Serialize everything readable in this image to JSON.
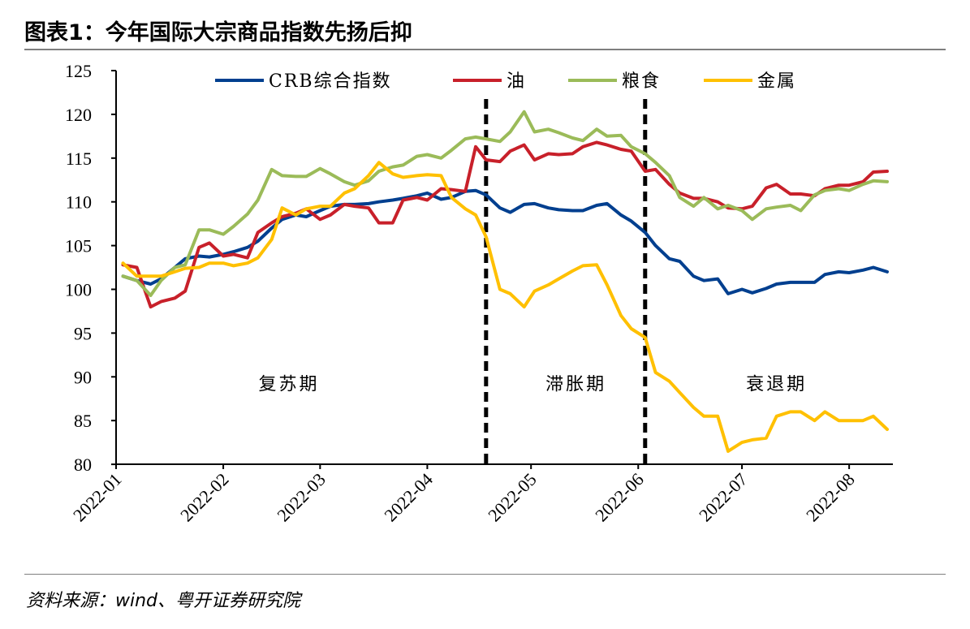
{
  "title": "图表1：今年国际大宗商品指数先扬后抑",
  "source": "资料来源：wind、粤开证券研究院",
  "chart_data": {
    "type": "line",
    "title": "",
    "xlabel": "",
    "ylabel": "",
    "ylim": [
      80,
      125
    ],
    "yticks": [
      80,
      85,
      90,
      95,
      100,
      105,
      110,
      115,
      120,
      125
    ],
    "xticks": [
      "2022-01",
      "2022-02",
      "2022-03",
      "2022-04",
      "2022-05",
      "2022-06",
      "2022-07",
      "2022-08"
    ],
    "xlim": [
      "2022-01-01",
      "2022-08-13"
    ],
    "grid": false,
    "legend_position": "top",
    "phase_dividers": [
      "2022-04-18",
      "2022-06-03"
    ],
    "phases": [
      {
        "label": "复苏期",
        "date": "2022-02-20",
        "value": 88.5
      },
      {
        "label": "滞胀期",
        "date": "2022-05-14",
        "value": 88.5
      },
      {
        "label": "衰退期",
        "date": "2022-07-11",
        "value": 88.5
      }
    ],
    "x": [
      "2022-01-03",
      "2022-01-07",
      "2022-01-11",
      "2022-01-14",
      "2022-01-18",
      "2022-01-21",
      "2022-01-25",
      "2022-01-28",
      "2022-02-01",
      "2022-02-04",
      "2022-02-08",
      "2022-02-11",
      "2022-02-15",
      "2022-02-18",
      "2022-02-22",
      "2022-02-25",
      "2022-03-01",
      "2022-03-04",
      "2022-03-08",
      "2022-03-11",
      "2022-03-15",
      "2022-03-18",
      "2022-03-22",
      "2022-03-25",
      "2022-03-29",
      "2022-04-01",
      "2022-04-05",
      "2022-04-08",
      "2022-04-12",
      "2022-04-15",
      "2022-04-18",
      "2022-04-22",
      "2022-04-25",
      "2022-04-29",
      "2022-05-02",
      "2022-05-06",
      "2022-05-09",
      "2022-05-13",
      "2022-05-16",
      "2022-05-20",
      "2022-05-23",
      "2022-05-27",
      "2022-05-30",
      "2022-06-03",
      "2022-06-06",
      "2022-06-10",
      "2022-06-13",
      "2022-06-17",
      "2022-06-20",
      "2022-06-24",
      "2022-06-27",
      "2022-07-01",
      "2022-07-04",
      "2022-07-08",
      "2022-07-11",
      "2022-07-15",
      "2022-07-18",
      "2022-07-22",
      "2022-07-25",
      "2022-07-29",
      "2022-08-01",
      "2022-08-05",
      "2022-08-08",
      "2022-08-12"
    ],
    "series": [
      {
        "name": "CRB综合指数",
        "color": "#003f8f",
        "values": [
          101.5,
          101,
          100.6,
          101.2,
          102.5,
          103.5,
          103.8,
          103.7,
          104,
          104.3,
          104.8,
          105.5,
          107,
          108,
          108.5,
          108.3,
          109,
          109.5,
          109.7,
          109.7,
          109.8,
          110,
          110.2,
          110.4,
          110.7,
          111,
          110.3,
          110.5,
          111.2,
          111.3,
          110.8,
          109.3,
          108.8,
          109.7,
          109.8,
          109.3,
          109.1,
          109,
          109,
          109.6,
          109.8,
          108.5,
          107.8,
          106.5,
          105,
          103.5,
          103.2,
          101.5,
          101,
          101.2,
          99.5,
          100,
          99.6,
          100.1,
          100.6,
          100.8,
          100.8,
          100.8,
          101.7,
          102,
          101.9,
          102.2,
          102.5,
          102
        ]
      },
      {
        "name": "油",
        "color": "#c8202a",
        "values": [
          102.8,
          102.5,
          98,
          98.6,
          99,
          99.8,
          104.8,
          105.3,
          103.8,
          104,
          103.6,
          106.5,
          107.6,
          108.3,
          108.7,
          109.2,
          108,
          108.5,
          109.7,
          109.5,
          109.3,
          107.6,
          107.6,
          110.2,
          110.5,
          110.2,
          111.5,
          111.4,
          111.2,
          116.3,
          114.8,
          114.6,
          115.8,
          116.5,
          114.8,
          115.5,
          115.4,
          115.5,
          116.3,
          116.8,
          116.5,
          116,
          115.8,
          113.5,
          113.7,
          112,
          111,
          110.4,
          110.4,
          110,
          109.3,
          109.2,
          109.5,
          111.6,
          112,
          110.9,
          110.9,
          110.7,
          111.5,
          111.9,
          111.9,
          112.3,
          113.4,
          113.5
        ]
      },
      {
        "name": "粮食",
        "color": "#9bbb59",
        "values": [
          101.5,
          101,
          99.3,
          101,
          102.5,
          102.8,
          106.8,
          106.8,
          106.3,
          107.2,
          108.6,
          110.2,
          113.7,
          113,
          112.9,
          112.9,
          113.8,
          113.2,
          112.3,
          111.9,
          112.4,
          113.5,
          114,
          114.2,
          115.2,
          115.4,
          115,
          115.9,
          117.2,
          117.4,
          117.2,
          116.9,
          118,
          120.3,
          118,
          118.3,
          117.9,
          117.3,
          117,
          118.3,
          117.5,
          117.6,
          116.3,
          115.5,
          114.5,
          113,
          110.5,
          109.5,
          110.5,
          109.2,
          109.6,
          109,
          108,
          109.2,
          109.4,
          109.6,
          109,
          110.8,
          111.3,
          111.5,
          111.3,
          112,
          112.4,
          112.3
        ]
      },
      {
        "name": "金属",
        "color": "#ffc000",
        "values": [
          103,
          101.5,
          101.5,
          101.5,
          102,
          102.4,
          102.5,
          103,
          103,
          102.7,
          103,
          103.6,
          105.7,
          109.3,
          108.5,
          109.2,
          109.5,
          109.5,
          111,
          111.5,
          113,
          114.5,
          113.2,
          112.8,
          113,
          113.1,
          113,
          110.5,
          109.2,
          108.5,
          106,
          100,
          99.5,
          98,
          99.8,
          100.5,
          101.2,
          102.1,
          102.7,
          102.8,
          100.5,
          97,
          95.5,
          94.5,
          90.5,
          89.5,
          88.2,
          86.5,
          85.5,
          85.5,
          81.5,
          82.5,
          82.8,
          83,
          85.5,
          86,
          86,
          85,
          86,
          85,
          85,
          85,
          85.5,
          84
        ]
      }
    ]
  }
}
